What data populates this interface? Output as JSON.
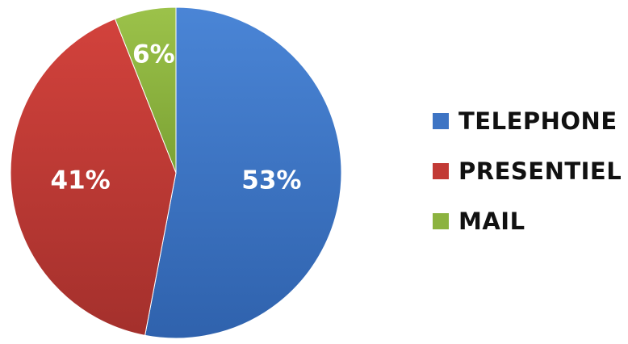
{
  "chart_data": {
    "type": "pie",
    "categories": [
      "TELEPHONE",
      "PRESENTIEL",
      "MAIL"
    ],
    "values": [
      53,
      41,
      6
    ],
    "labels": [
      "53%",
      "41%",
      "6%"
    ],
    "colors": [
      "#3d74c4",
      "#c23a35",
      "#8cb33f"
    ],
    "start": "top",
    "direction": "clockwise",
    "legend_position": "right"
  }
}
